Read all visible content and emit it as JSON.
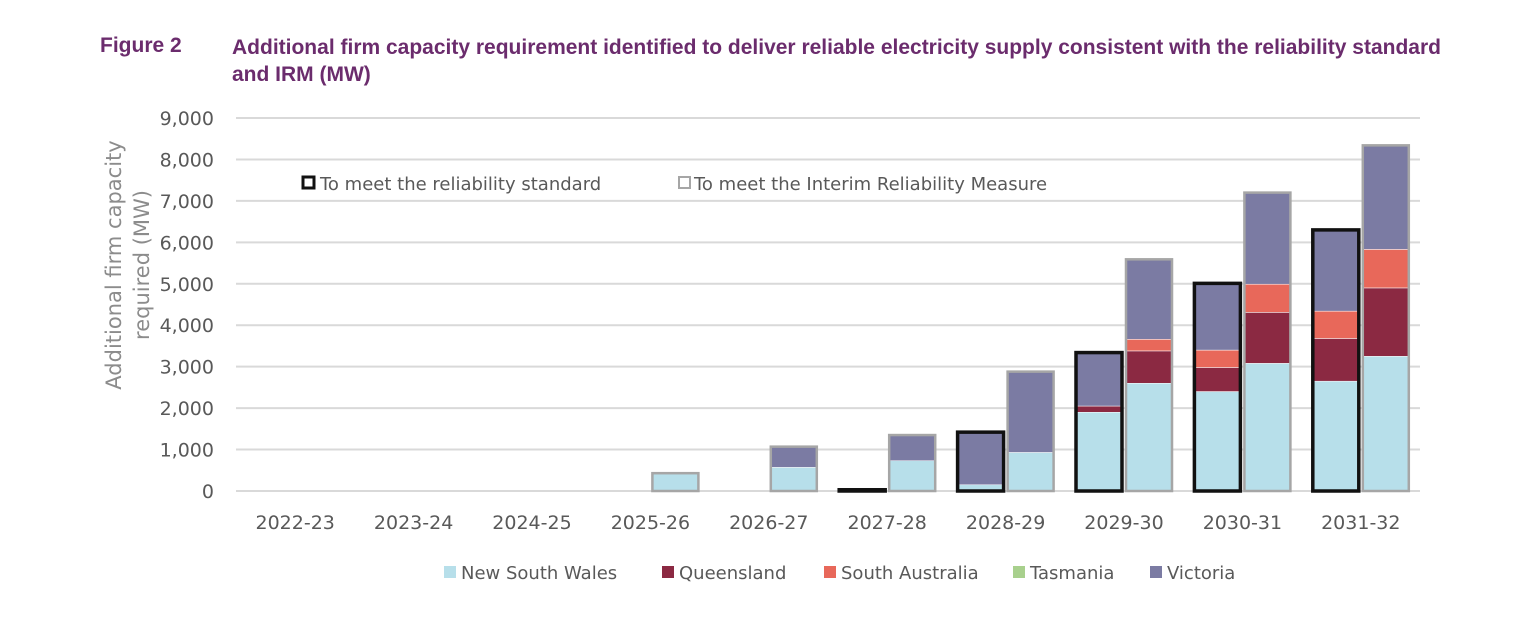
{
  "figure": {
    "label": "Figure 2",
    "title": "Additional firm capacity requirement identified to deliver reliable electricity supply consistent with the reliability standard and IRM (MW)"
  },
  "chart_data": {
    "type": "bar",
    "subtype": "stacked, paired",
    "ylabel_line1": "Additional  firm capacity",
    "ylabel_line2": "required (MW)",
    "ylim": [
      0,
      9000
    ],
    "yticks": [
      0,
      1000,
      2000,
      3000,
      4000,
      5000,
      6000,
      7000,
      8000,
      9000
    ],
    "ytick_labels": [
      "0",
      "1,000",
      "2,000",
      "3,000",
      "4,000",
      "5,000",
      "6,000",
      "7,000",
      "8,000",
      "9,000"
    ],
    "grid": true,
    "categories": [
      "2022-23",
      "2023-24",
      "2024-25",
      "2025-26",
      "2026-27",
      "2027-28",
      "2028-29",
      "2029-30",
      "2030-31",
      "2031-32"
    ],
    "bar_groups": [
      {
        "name": "To meet the reliability standard",
        "border_color": "#111111"
      },
      {
        "name": "To meet the Interim Reliability Measure",
        "border_color": "#a6a6a6"
      }
    ],
    "series": [
      {
        "name": "New South Wales",
        "color": "#b7dfea",
        "reliability_standard": [
          0,
          0,
          0,
          0,
          0,
          0,
          150,
          1900,
          2400,
          2650
        ],
        "irm": [
          0,
          0,
          0,
          430,
          570,
          730,
          930,
          2600,
          3080,
          3250
        ]
      },
      {
        "name": "Queensland",
        "color": "#8b2942",
        "reliability_standard": [
          0,
          0,
          0,
          0,
          0,
          0,
          0,
          150,
          580,
          1030
        ],
        "irm": [
          0,
          0,
          0,
          0,
          0,
          0,
          0,
          780,
          1230,
          1650
        ]
      },
      {
        "name": "South Australia",
        "color": "#e8685a",
        "reliability_standard": [
          0,
          0,
          0,
          0,
          0,
          0,
          0,
          0,
          420,
          660
        ],
        "irm": [
          0,
          0,
          0,
          0,
          0,
          0,
          0,
          280,
          680,
          930
        ]
      },
      {
        "name": "Tasmania",
        "color": "#a8d08d",
        "reliability_standard": [
          0,
          0,
          0,
          0,
          0,
          0,
          0,
          0,
          0,
          0
        ],
        "irm": [
          0,
          0,
          0,
          0,
          0,
          0,
          0,
          0,
          0,
          0
        ]
      },
      {
        "name": "Victoria",
        "color": "#7b7ba3",
        "reliability_standard": [
          0,
          0,
          0,
          0,
          0,
          30,
          1270,
          1290,
          1610,
          1960
        ],
        "irm": [
          0,
          0,
          0,
          0,
          500,
          620,
          1950,
          1930,
          2210,
          2510
        ]
      }
    ],
    "legend_position": "bottom",
    "group_legend_position": "top-left"
  }
}
